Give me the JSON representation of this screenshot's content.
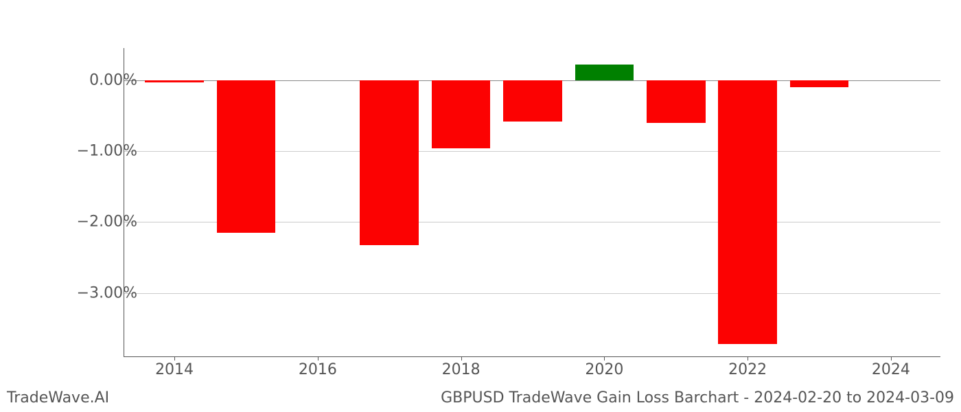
{
  "chart": {
    "type": "bar",
    "y_ticks": [
      -3.0,
      -2.0,
      -1.0,
      0.0
    ],
    "y_tick_labels": [
      "−3.00%",
      "−2.00%",
      "−1.00%",
      "0.00%"
    ],
    "y_min": -3.9,
    "y_max": 0.45,
    "x_ticks": [
      2014,
      2016,
      2018,
      2020,
      2022,
      2024
    ],
    "x_tick_labels": [
      "2014",
      "2016",
      "2018",
      "2020",
      "2022",
      "2024"
    ],
    "x_min": 2013.3,
    "x_max": 2024.7,
    "bars": [
      {
        "x": 2014,
        "value": -0.03,
        "color": "#fc0202"
      },
      {
        "x": 2015,
        "value": -2.15,
        "color": "#fc0202"
      },
      {
        "x": 2017,
        "value": -2.32,
        "color": "#fc0202"
      },
      {
        "x": 2018,
        "value": -0.96,
        "color": "#fc0202"
      },
      {
        "x": 2019,
        "value": -0.58,
        "color": "#fc0202"
      },
      {
        "x": 2020,
        "value": 0.22,
        "color": "#008000"
      },
      {
        "x": 2021,
        "value": -0.6,
        "color": "#fc0202"
      },
      {
        "x": 2022,
        "value": -3.72,
        "color": "#fc0202"
      },
      {
        "x": 2023,
        "value": -0.1,
        "color": "#fc0202"
      }
    ],
    "bar_width_years": 0.82,
    "grid_color": "#cccccc",
    "axis_color": "#555555",
    "background_color": "#ffffff",
    "tick_font_size": 22,
    "tick_color": "#555555"
  },
  "footer": {
    "left": "TradeWave.AI",
    "right": "GBPUSD TradeWave Gain Loss Barchart - 2024-02-20 to 2024-03-09",
    "font_size": 22,
    "color": "#555555"
  }
}
